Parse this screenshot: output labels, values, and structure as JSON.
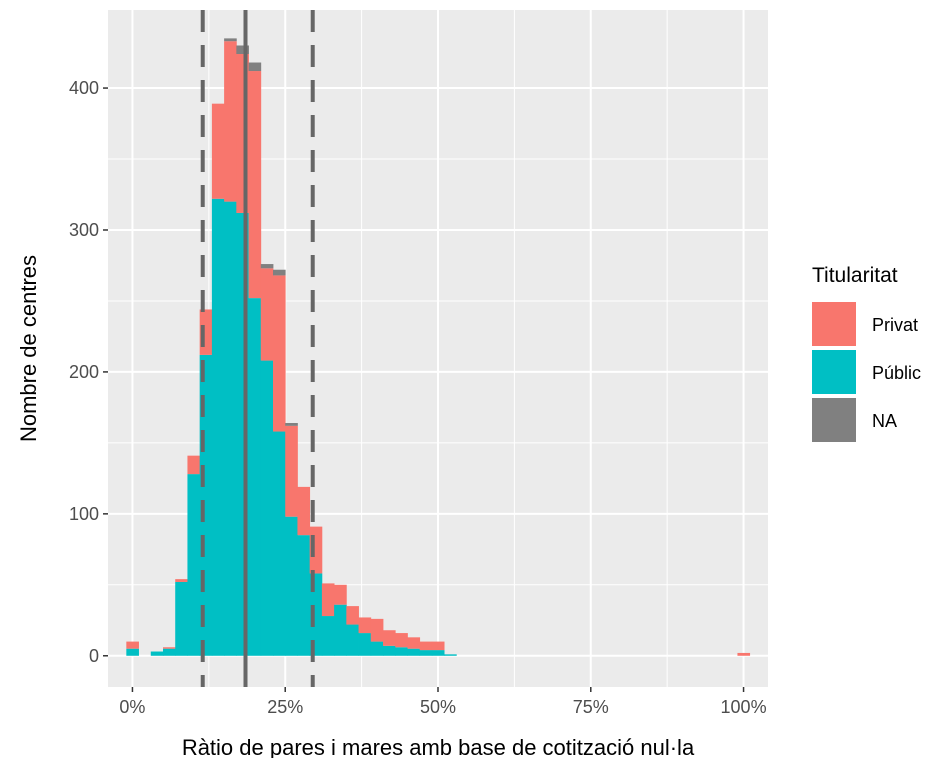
{
  "chart_data": {
    "type": "bar",
    "subtype": "stacked-histogram",
    "xlabel": "Ràtio de pares i mares amb base de cotització nul·la",
    "ylabel": "Nombre de centres",
    "xlim": [
      -0.04,
      1.04
    ],
    "ylim": [
      -22,
      455
    ],
    "x_ticks": [
      0,
      0.25,
      0.5,
      0.75,
      1.0
    ],
    "x_tick_labels": [
      "0%",
      "25%",
      "50%",
      "75%",
      "100%"
    ],
    "y_ticks": [
      0,
      100,
      200,
      300,
      400
    ],
    "y_tick_labels": [
      "0",
      "100",
      "200",
      "300",
      "400"
    ],
    "grid": true,
    "legend_position": "right",
    "bin_width": 0.02,
    "bins": [
      0,
      0.02,
      0.04,
      0.06,
      0.08,
      0.1,
      0.12,
      0.14,
      0.16,
      0.18,
      0.2,
      0.22,
      0.24,
      0.26,
      0.28,
      0.3,
      0.32,
      0.34,
      0.36,
      0.38,
      0.4,
      0.42,
      0.44,
      0.46,
      0.48,
      0.5,
      0.52,
      1.0
    ],
    "stack_order": [
      "Públic",
      "Privat",
      "NA"
    ],
    "series": [
      {
        "name": "Públic",
        "color": "#00BFC4",
        "values": [
          5,
          0,
          3,
          5,
          52,
          128,
          212,
          322,
          320,
          312,
          252,
          208,
          158,
          98,
          85,
          58,
          28,
          36,
          22,
          16,
          10,
          7,
          6,
          5,
          4,
          4,
          1,
          0
        ]
      },
      {
        "name": "Privat",
        "color": "#F8766D",
        "values": [
          5,
          0,
          0,
          1,
          2,
          13,
          32,
          67,
          113,
          112,
          160,
          65,
          110,
          64,
          34,
          33,
          23,
          14,
          13,
          11,
          16,
          11,
          10,
          8,
          6,
          6,
          0,
          2
        ]
      },
      {
        "name": "NA",
        "color": "#808080",
        "values": [
          0,
          0,
          0,
          0,
          0,
          0,
          0,
          0,
          2,
          6,
          6,
          3,
          4,
          2,
          0,
          0,
          0,
          0,
          0,
          0,
          0,
          0,
          0,
          0,
          0,
          0,
          0,
          0
        ]
      }
    ],
    "reference_lines": [
      {
        "type": "mean",
        "x": 0.185,
        "style": "solid",
        "color": "#666666"
      },
      {
        "type": "lower",
        "x": 0.115,
        "style": "dashed",
        "color": "#666666"
      },
      {
        "type": "upper",
        "x": 0.295,
        "style": "dashed",
        "color": "#666666"
      }
    ],
    "legend": {
      "title": "Titularitat",
      "entries": [
        {
          "label": "Privat",
          "color": "#F8766D"
        },
        {
          "label": "Públic",
          "color": "#00BFC4"
        },
        {
          "label": "NA",
          "color": "#808080"
        }
      ]
    },
    "colors": {
      "panel": "#EBEBEB",
      "grid_major": "#FFFFFF",
      "axis_text": "#4D4D4D"
    }
  }
}
